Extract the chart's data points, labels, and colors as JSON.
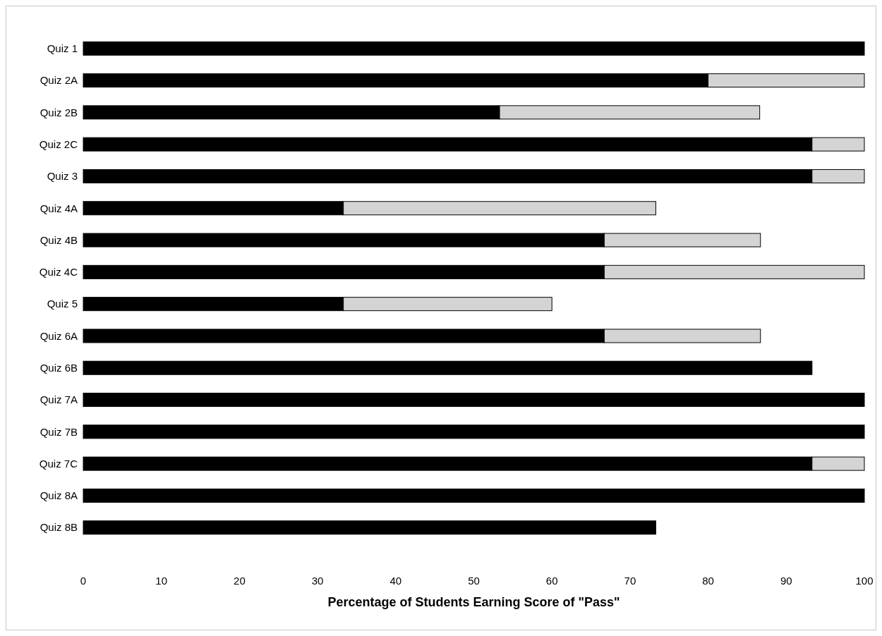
{
  "chart_data": {
    "type": "bar",
    "orientation": "horizontal",
    "stacked": true,
    "xlabel": "Percentage of Students Earning Score of \"Pass\"",
    "categories": [
      "Quiz 1",
      "Quiz 2A",
      "Quiz 2B",
      "Quiz 2C",
      "Quiz 3",
      "Quiz 4A",
      "Quiz 4B",
      "Quiz 4C",
      "Quiz 5",
      "Quiz 6A",
      "Quiz 6B",
      "Quiz 7A",
      "Quiz 7B",
      "Quiz 7C",
      "Quiz 8A",
      "Quiz 8B"
    ],
    "series": [
      {
        "color": "#000000",
        "values": [
          100,
          80,
          53.3,
          93.3,
          93.3,
          33.3,
          66.7,
          66.7,
          33.3,
          66.7,
          93.3,
          100,
          100,
          93.3,
          100,
          73.3
        ]
      },
      {
        "color": "#d4d4d4",
        "values": [
          0,
          20,
          33.3,
          6.7,
          6.7,
          40,
          20,
          33.3,
          26.7,
          20,
          0,
          0,
          0,
          6.7,
          0,
          0
        ]
      }
    ],
    "xlim": [
      0,
      100
    ],
    "xticks": [
      0,
      10,
      20,
      30,
      40,
      50,
      60,
      70,
      80,
      90,
      100
    ],
    "grid": false
  }
}
